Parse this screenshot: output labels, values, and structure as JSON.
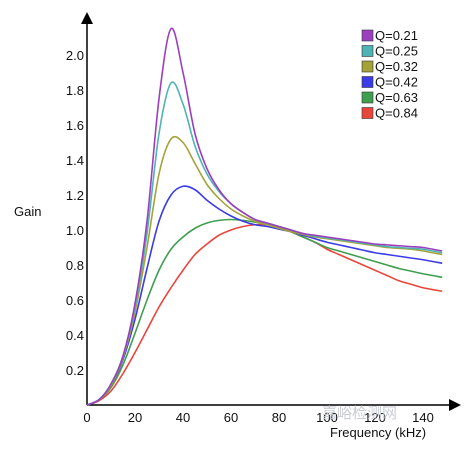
{
  "chart_data": {
    "type": "line",
    "xlabel": "Frequency (kHz)",
    "ylabel": "Gain",
    "xlim": [
      0,
      150
    ],
    "ylim": [
      0,
      2.2
    ],
    "xticks": [
      "0",
      "20",
      "40",
      "60",
      "80",
      "100",
      "120",
      "140"
    ],
    "yticks": [
      "0.2",
      "0.4",
      "0.6",
      "0.8",
      "1.0",
      "1.2",
      "1.4",
      "1.6",
      "1.8",
      "2.0"
    ],
    "grid": false,
    "legend_position": "top-right",
    "x": [
      0,
      5,
      10,
      15,
      20,
      25,
      30,
      35,
      40,
      45,
      50,
      55,
      60,
      65,
      70,
      75,
      80,
      85,
      90,
      95,
      100,
      105,
      110,
      115,
      120,
      125,
      130,
      135,
      140,
      148
    ],
    "series": [
      {
        "name": "Q=0.21",
        "color": "#9b3fbf",
        "values": [
          0,
          0.03,
          0.12,
          0.28,
          0.58,
          1.05,
          1.75,
          2.15,
          1.9,
          1.55,
          1.35,
          1.23,
          1.15,
          1.1,
          1.06,
          1.04,
          1.02,
          1.0,
          0.98,
          0.97,
          0.96,
          0.95,
          0.94,
          0.93,
          0.92,
          0.915,
          0.91,
          0.905,
          0.9,
          0.88
        ]
      },
      {
        "name": "Q=0.25",
        "color": "#4fb3b3",
        "values": [
          0,
          0.03,
          0.12,
          0.28,
          0.56,
          0.98,
          1.55,
          1.84,
          1.72,
          1.48,
          1.32,
          1.22,
          1.15,
          1.1,
          1.06,
          1.04,
          1.02,
          1.0,
          0.98,
          0.965,
          0.955,
          0.945,
          0.935,
          0.925,
          0.915,
          0.905,
          0.9,
          0.895,
          0.89,
          0.87
        ]
      },
      {
        "name": "Q=0.32",
        "color": "#a6a23a",
        "values": [
          0,
          0.03,
          0.11,
          0.27,
          0.53,
          0.9,
          1.32,
          1.52,
          1.5,
          1.38,
          1.26,
          1.18,
          1.12,
          1.08,
          1.05,
          1.03,
          1.01,
          0.99,
          0.975,
          0.96,
          0.95,
          0.94,
          0.93,
          0.92,
          0.91,
          0.9,
          0.895,
          0.89,
          0.88,
          0.86
        ]
      },
      {
        "name": "Q=0.42",
        "color": "#3b3be8",
        "values": [
          0,
          0.03,
          0.11,
          0.26,
          0.49,
          0.78,
          1.05,
          1.2,
          1.25,
          1.23,
          1.17,
          1.12,
          1.08,
          1.05,
          1.03,
          1.02,
          1.005,
          0.99,
          0.97,
          0.95,
          0.93,
          0.915,
          0.9,
          0.885,
          0.87,
          0.86,
          0.85,
          0.84,
          0.83,
          0.81
        ]
      },
      {
        "name": "Q=0.63",
        "color": "#3f9e4f",
        "values": [
          0,
          0.03,
          0.1,
          0.23,
          0.41,
          0.6,
          0.77,
          0.89,
          0.96,
          1.01,
          1.04,
          1.055,
          1.06,
          1.055,
          1.045,
          1.03,
          1.01,
          0.99,
          0.96,
          0.93,
          0.9,
          0.88,
          0.86,
          0.84,
          0.82,
          0.8,
          0.78,
          0.765,
          0.75,
          0.73
        ]
      },
      {
        "name": "Q=0.84",
        "color": "#e8463c",
        "values": [
          0,
          0.025,
          0.08,
          0.18,
          0.3,
          0.43,
          0.56,
          0.67,
          0.77,
          0.86,
          0.92,
          0.97,
          1.0,
          1.02,
          1.03,
          1.03,
          1.015,
          0.99,
          0.96,
          0.93,
          0.89,
          0.86,
          0.83,
          0.8,
          0.77,
          0.74,
          0.71,
          0.69,
          0.67,
          0.65
        ]
      }
    ],
    "watermark": "嘉峪检测网"
  }
}
